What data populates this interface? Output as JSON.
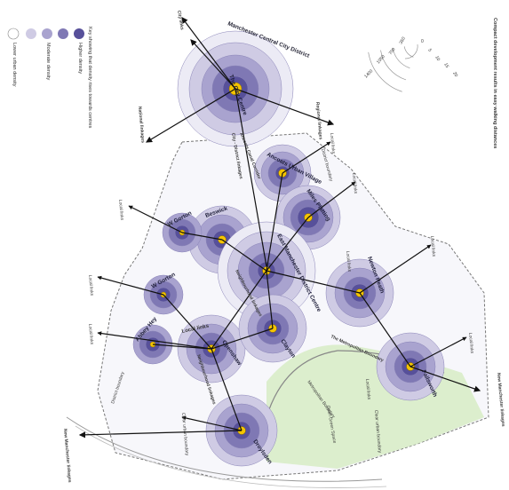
{
  "colors": {
    "density_1": "#ecebf5",
    "density_2": "#cfcbe4",
    "density_3": "#a9a3cf",
    "density_4": "#7f78b4",
    "density_5": "#57509a",
    "centre_dot": "#f4c400",
    "open_space": "#d8ecc8",
    "district_fill": "#f7f7fb"
  },
  "legend": {
    "key_title": "Key showing that density rises towards centres",
    "lower_urban": "Lower urban density",
    "moderate": "Moderate density",
    "higher": "Higher density"
  },
  "walking_key": {
    "title": "Compact development results in easy walking distances",
    "labels": [
      "0",
      "350",
      "700",
      "1050",
      "1400",
      "5",
      "10",
      "15",
      "20"
    ]
  },
  "centres": {
    "city_centre": "The City Centre",
    "city_centre_district": "Manchester Central City District",
    "ancoats": "Ancoats Urban Village",
    "miles_platting": "Miles Platting",
    "beswick": "Beswick",
    "w_gorton_north": "W Gorton",
    "east_manchester": "East Manchester District Centre",
    "newton_heath": "Newton Heath",
    "w_gorton_south": "W Gorton",
    "openshaw": "Openshaw",
    "clayton": "Clayton",
    "abbey_hey": "Abbey Hey",
    "droylsden": "Droylsden",
    "failsworth": "Failsworth"
  },
  "linkages": {
    "city_links": "City links",
    "national": "National linkages",
    "regional": "Regional linkages",
    "city_district": "City - District linkages",
    "neighbourhood": "Neighbourhood linkages",
    "neighbourhood_2": "Neighbourhood linkages",
    "local_links": "Local links",
    "local_links_big": "Local links",
    "new_manchester_1": "New Manchester linkages",
    "new_manchester_2": "New Manchester linkages",
    "ancoats_corridor": "Ancoats Canal Corridor"
  },
  "boundaries": {
    "district": "District boundary",
    "district_2": "District boundary",
    "metropolitan": "The Metropolitan Boundary",
    "metropolitan_2": "Metropolitan Boundary",
    "clear_urban": "Clear urban boundary",
    "clear_urban_2": "Clear urban boundary",
    "open_green": "Open Green Space"
  }
}
